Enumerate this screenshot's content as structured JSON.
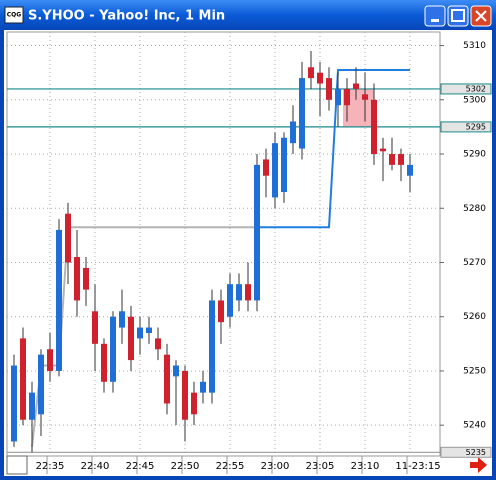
{
  "window": {
    "icon_text": "CQG"
  },
  "chart_data": {
    "type": "candlestick",
    "title": "S.YHOO - Yahoo! Inc, 1 Min",
    "categories": [
      null,
      null,
      null,
      null,
      "22:35",
      null,
      null,
      null,
      null,
      "22:40",
      null,
      null,
      null,
      null,
      "22:45",
      null,
      null,
      null,
      null,
      "22:50",
      null,
      null,
      null,
      null,
      "22:55",
      null,
      null,
      null,
      null,
      "23:00",
      null,
      null,
      null,
      null,
      "23:05",
      null,
      null,
      null,
      null,
      "23:10",
      null,
      null,
      null,
      null,
      "11-23:15"
    ],
    "open": [
      5237,
      5256,
      5241,
      5242,
      5254,
      5250,
      5279,
      5271,
      5269,
      5261,
      5255,
      5248,
      5258,
      5260,
      5256,
      5257,
      5256,
      5253,
      5249,
      5250,
      5246,
      5246,
      5246,
      5263,
      5260,
      5263,
      5266,
      5263,
      5289,
      5282,
      5283,
      5292,
      5291,
      5306,
      5305,
      5304,
      5299,
      5302,
      5303,
      5301,
      5300,
      5291,
      5290,
      5290,
      5286
    ],
    "high": [
      5253,
      5258,
      5248,
      5254,
      5257,
      5278,
      5281,
      5276,
      5271,
      5266,
      5256,
      5261,
      5265,
      5262,
      5260,
      5260,
      5258,
      5255,
      5252,
      5251,
      5248,
      5250,
      5265,
      5265,
      5268,
      5268,
      5270,
      5290,
      5291,
      5294,
      5294,
      5299,
      5307,
      5309,
      5307,
      5306,
      5305,
      5304,
      5306,
      5305,
      5303,
      5293,
      5293,
      5291,
      5290
    ],
    "low": [
      5236,
      5240,
      5235,
      5238,
      5248,
      5249,
      5266,
      5260,
      5262,
      5250,
      5246,
      5246,
      5255,
      5250,
      5253,
      5255,
      5252,
      5242,
      5240,
      5237,
      5240,
      5244,
      5244,
      5255,
      5258,
      5261,
      5261,
      5261,
      5282,
      5280,
      5281,
      5290,
      5289,
      5302,
      5297,
      5298,
      5295,
      5296,
      5300,
      5296,
      5288,
      5285,
      5287,
      5285,
      5283
    ],
    "close": [
      5251,
      5241,
      5246,
      5253,
      5250,
      5276,
      5270,
      5263,
      5265,
      5255,
      5248,
      5260,
      5261,
      5252,
      5258,
      5258,
      5254,
      5244,
      5251,
      5241,
      5242,
      5248,
      5263,
      5259,
      5266,
      5266,
      5263,
      5288,
      5286,
      5292,
      5293,
      5296,
      5304,
      5304,
      5303,
      5300,
      5302,
      5299,
      5302,
      5300,
      5290,
      5290.5,
      5288,
      5288,
      5288
    ],
    "up_color": "#1f6fd6",
    "down_color": "#d0222e",
    "lines": [
      {
        "color": "#b4b4b4",
        "values": [
          null,
          null,
          5236,
          5251,
          5251,
          5251,
          5276.5,
          5276.5,
          5276.5,
          5276.5,
          5276.5,
          5276.5,
          5276.5,
          5276.5,
          5276.5,
          5276.5,
          5276.5,
          5276.5,
          5276.5,
          5276.5,
          5276.5,
          5276.5,
          5276.5,
          5276.5,
          5276.5,
          5276.5,
          5276.5,
          5276.5,
          null,
          null,
          null,
          null,
          null,
          null,
          null,
          null,
          null,
          null,
          null,
          null,
          null,
          null,
          null,
          null,
          null
        ]
      },
      {
        "color": "#1f7ee0",
        "values": [
          null,
          null,
          null,
          null,
          null,
          null,
          null,
          null,
          null,
          null,
          null,
          null,
          null,
          null,
          null,
          null,
          null,
          null,
          null,
          null,
          null,
          null,
          null,
          null,
          null,
          null,
          null,
          5276.5,
          5276.5,
          5276.5,
          5276.5,
          5276.5,
          5276.5,
          5276.5,
          5276.5,
          5276.5,
          5305.5,
          5305.5,
          5305.5,
          5305.5,
          5305.5,
          5305.5,
          5305.5,
          5305.5,
          5305.5
        ]
      }
    ],
    "levels": [
      {
        "value": 5302,
        "color": "#1a8a8a"
      },
      {
        "value": 5295,
        "color": "#1a8a8a"
      },
      {
        "value": 5235,
        "color": "#999999"
      }
    ],
    "ylim": [
      5234.5,
      5312.5
    ],
    "yticks": [
      5240,
      5250,
      5260,
      5270,
      5280,
      5290,
      5300,
      5310
    ],
    "grid": true
  }
}
